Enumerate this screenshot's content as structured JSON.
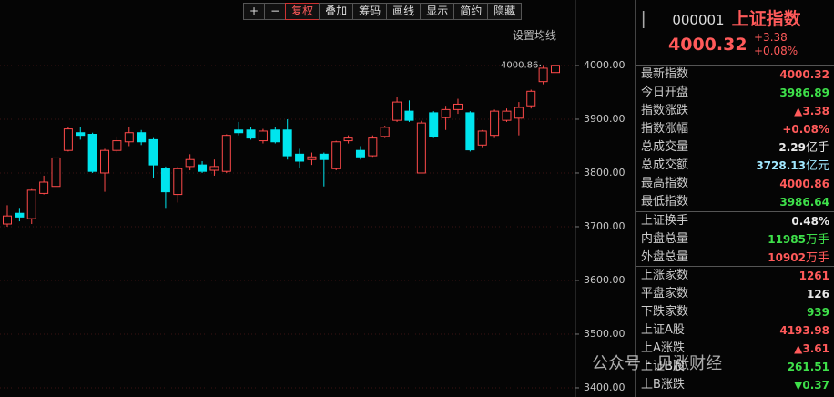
{
  "toolbar": {
    "buttons": [
      "+",
      "−",
      "复权",
      "叠加",
      "筹码",
      "画线",
      "显示",
      "简约",
      "隐藏"
    ]
  },
  "ma_setting": "设置均线",
  "chart_data": {
    "type": "candlestick",
    "open": [
      3705,
      3725,
      3715,
      3762,
      3775,
      3842,
      3875,
      3872,
      3800,
      3842,
      3858,
      3875,
      3862,
      3808,
      3760,
      3812,
      3815,
      3805,
      3803,
      3880,
      3880,
      3860,
      3880,
      3880,
      3835,
      3825,
      3835,
      3808,
      3860,
      3842,
      3832,
      3868,
      3898,
      3915,
      3800,
      3912,
      3903,
      3918,
      3912,
      3852,
      3870,
      3898,
      3902,
      3925,
      3970,
      3986.89
    ],
    "high": [
      3740,
      3735,
      3770,
      3795,
      3830,
      3885,
      3885,
      3875,
      3845,
      3868,
      3885,
      3880,
      3865,
      3812,
      3812,
      3835,
      3822,
      3825,
      3872,
      3895,
      3885,
      3882,
      3885,
      3900,
      3845,
      3838,
      3838,
      3860,
      3870,
      3850,
      3870,
      3888,
      3942,
      3935,
      3897,
      3915,
      3925,
      3938,
      3915,
      3880,
      3918,
      3920,
      3932,
      3955,
      4001,
      4000.86
    ],
    "low": [
      3700,
      3710,
      3705,
      3760,
      3770,
      3840,
      3862,
      3800,
      3765,
      3838,
      3850,
      3852,
      3790,
      3735,
      3745,
      3805,
      3800,
      3795,
      3800,
      3870,
      3862,
      3855,
      3855,
      3825,
      3810,
      3815,
      3775,
      3805,
      3855,
      3825,
      3830,
      3865,
      3895,
      3895,
      3800,
      3865,
      3880,
      3910,
      3840,
      3848,
      3865,
      3895,
      3870,
      3920,
      3965,
      3986.64
    ],
    "close": [
      3720,
      3718,
      3768,
      3783,
      3828,
      3882,
      3870,
      3803,
      3842,
      3860,
      3875,
      3858,
      3815,
      3765,
      3808,
      3825,
      3803,
      3812,
      3870,
      3875,
      3865,
      3878,
      3858,
      3832,
      3822,
      3830,
      3825,
      3858,
      3865,
      3830,
      3865,
      3885,
      3932,
      3898,
      3893,
      3868,
      3918,
      3928,
      3843,
      3878,
      3915,
      3915,
      3922,
      3952,
      3995,
      4000.32
    ],
    "up_color": "#ff4a4a",
    "down_color": "#00e5ee",
    "ylim": [
      3383,
      4122
    ],
    "yticks": [
      {
        "value": 3400,
        "label": "3400.00"
      },
      {
        "value": 3500,
        "label": "3500.00"
      },
      {
        "value": 3600,
        "label": "3600.00"
      },
      {
        "value": 3700,
        "label": "3700.00"
      },
      {
        "value": 3800,
        "label": "3800.00"
      },
      {
        "value": 3900,
        "label": "3900.00"
      },
      {
        "value": 4000,
        "label": "4000.00"
      }
    ],
    "grid": true,
    "annotation": "4000.86"
  },
  "quote": {
    "code": "000001",
    "name": "上证指数",
    "price": "4000.32",
    "change": "+3.38",
    "change_pct": "+0.08%",
    "sections": [
      [
        {
          "label": "最新指数",
          "value": "4000.32",
          "color": "#ff5a5a"
        },
        {
          "label": "今日开盘",
          "value": "3986.89",
          "color": "#3ee04a"
        },
        {
          "label": "指数涨跌",
          "value": "▲3.38",
          "color": "#ff5a5a"
        },
        {
          "label": "指数涨幅",
          "value": "+0.08%",
          "color": "#ff5a5a"
        },
        {
          "label": "总成交量",
          "value": "2.29",
          "unit": "亿手",
          "color": "#e8e8e8"
        },
        {
          "label": "总成交额",
          "value": "3728.13",
          "unit": "亿元",
          "color": "#a0e8ff"
        },
        {
          "label": "最高指数",
          "value": "4000.86",
          "color": "#ff5a5a"
        },
        {
          "label": "最低指数",
          "value": "3986.64",
          "color": "#3ee04a"
        }
      ],
      [
        {
          "label": "上证换手",
          "value": "0.48%",
          "color": "#e8e8e8"
        },
        {
          "label": "内盘总量",
          "value": "11985",
          "unit": "万手",
          "color": "#3ee04a"
        },
        {
          "label": "外盘总量",
          "value": "10902",
          "unit": "万手",
          "color": "#ff5a5a"
        }
      ],
      [
        {
          "label": "上涨家数",
          "value": "1261",
          "color": "#ff5a5a"
        },
        {
          "label": "平盘家数",
          "value": "126",
          "color": "#e8e8e8"
        },
        {
          "label": "下跌家数",
          "value": "939",
          "color": "#3ee04a"
        }
      ],
      [
        {
          "label": "上证A股",
          "value": "4193.98",
          "color": "#ff5a5a"
        },
        {
          "label": "上A涨跌",
          "value": "▲3.61",
          "color": "#ff5a5a"
        },
        {
          "label": "上证B股",
          "value": "261.51",
          "color": "#3ee04a"
        },
        {
          "label": "上B涨跌",
          "value": "▼0.37",
          "color": "#3ee04a"
        }
      ]
    ]
  },
  "watermark": "公众号 · 见涨财经"
}
